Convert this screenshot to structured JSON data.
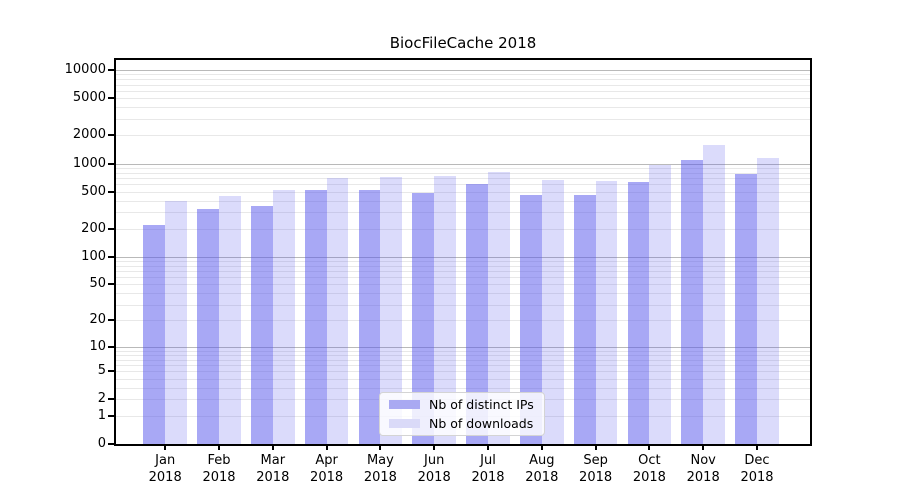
{
  "chart_data": {
    "type": "bar",
    "title": "BiocFileCache 2018",
    "x_categories": [
      "Jan",
      "Feb",
      "Mar",
      "Apr",
      "May",
      "Jun",
      "Jul",
      "Aug",
      "Sep",
      "Oct",
      "Nov",
      "Dec"
    ],
    "x_year": "2018",
    "series": [
      {
        "name": "Nb of distinct IPs",
        "values": [
          220,
          325,
          355,
          520,
          515,
          480,
          600,
          465,
          460,
          635,
          1090,
          765
        ],
        "bar_color": "rgba(85,85,235,0.51)",
        "swatch_color": "#a9a9f2"
      },
      {
        "name": "Nb of downloads",
        "values": [
          395,
          445,
          525,
          700,
          710,
          740,
          820,
          670,
          655,
          975,
          1600,
          1150
        ],
        "bar_color": "rgba(85,85,235,0.21)",
        "swatch_color": "#dadaf8"
      }
    ],
    "y_scale": "log1p",
    "y_ticks": [
      0,
      1,
      2,
      5,
      10,
      20,
      50,
      100,
      200,
      500,
      1000,
      2000,
      5000,
      10000
    ],
    "ylim": [
      0,
      12835
    ],
    "grid": true,
    "legend_position": "lower center"
  },
  "colors": {
    "axis": "#000000",
    "major_grid": "#b9b9b9",
    "minor_grid": "#e8e8e8",
    "legend_border": "#d4d4d4",
    "text": "#000000"
  }
}
